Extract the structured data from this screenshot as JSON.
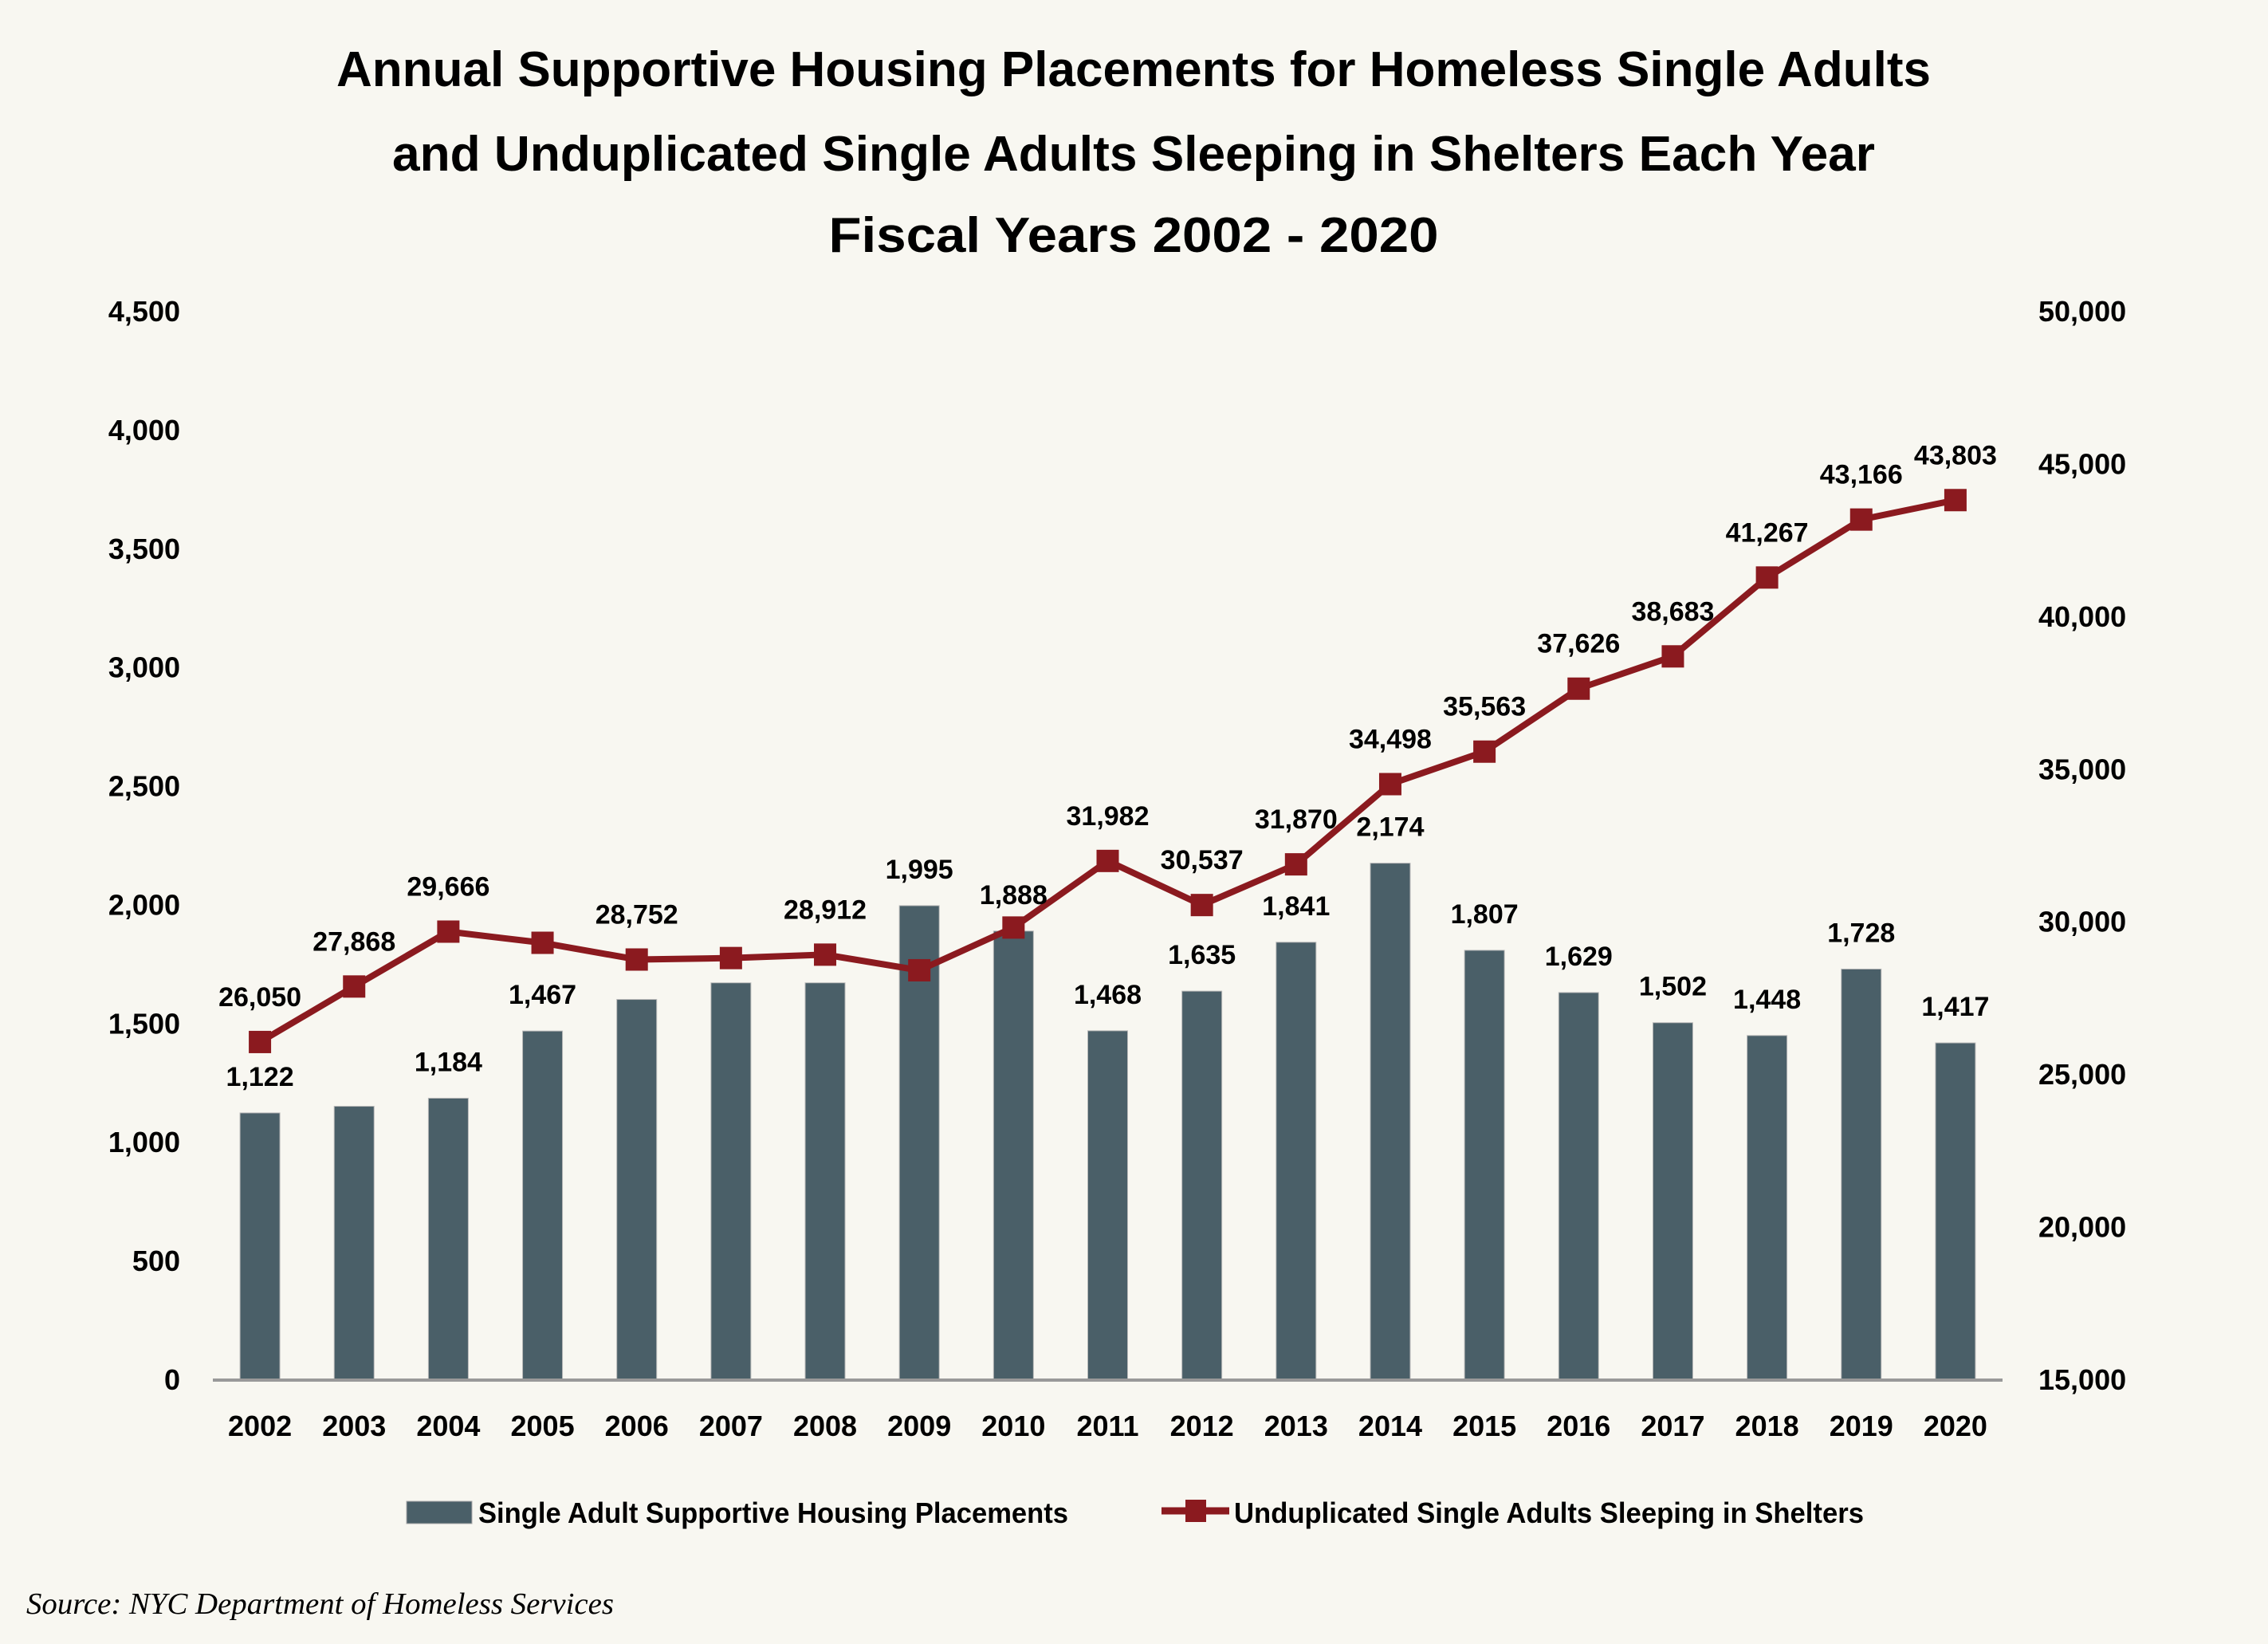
{
  "chart_data": {
    "type": "bar+line",
    "title": [
      "Annual Supportive Housing Placements for Homeless Single Adults",
      "and Unduplicated Single Adults Sleeping in Shelters Each Year",
      "Fiscal Years 2002 - 2020"
    ],
    "categories": [
      "2002",
      "2003",
      "2004",
      "2005",
      "2006",
      "2007",
      "2008",
      "2009",
      "2010",
      "2011",
      "2012",
      "2013",
      "2014",
      "2015",
      "2016",
      "2017",
      "2018",
      "2019",
      "2020"
    ],
    "y_left": {
      "ylim": [
        0,
        4500
      ],
      "ticks": [
        "0",
        "500",
        "1,000",
        "1,500",
        "2,000",
        "2,500",
        "3,000",
        "3,500",
        "4,000",
        "4,500"
      ],
      "tick_values": [
        0,
        500,
        1000,
        1500,
        2000,
        2500,
        3000,
        3500,
        4000,
        4500
      ]
    },
    "y_right": {
      "ylim": [
        15000,
        50000
      ],
      "ticks": [
        "15,000",
        "20,000",
        "25,000",
        "30,000",
        "35,000",
        "40,000",
        "45,000",
        "50,000"
      ],
      "tick_values": [
        15000,
        20000,
        25000,
        30000,
        35000,
        40000,
        45000,
        50000
      ]
    },
    "series": [
      {
        "name": "Single Adult Supportive Housing Placements",
        "type": "bar",
        "axis": "left",
        "color": "#4A5F68",
        "values": [
          1122,
          1150,
          1184,
          1467,
          1600,
          1670,
          1670,
          1995,
          1888,
          1468,
          1635,
          1841,
          2174,
          1807,
          1629,
          1502,
          1448,
          1728,
          1417
        ],
        "labels": [
          "1,122",
          null,
          "1,184",
          "1,467",
          null,
          null,
          null,
          "1,995",
          "1,888",
          "1,468",
          "1,635",
          "1,841",
          "2,174",
          "1,807",
          "1,629",
          "1,502",
          "1,448",
          "1,728",
          "1,417"
        ]
      },
      {
        "name": "Unduplicated Single Adults Sleeping in Shelters",
        "type": "line",
        "axis": "right",
        "color": "#8B1A1F",
        "marker": "square",
        "values": [
          26050,
          27868,
          29666,
          29300,
          28752,
          28800,
          28912,
          28400,
          29800,
          31982,
          30537,
          31870,
          34498,
          35563,
          37626,
          38683,
          41267,
          43166,
          43803
        ],
        "labels": [
          "26,050",
          "27,868",
          "29,666",
          null,
          "28,752",
          null,
          "28,912",
          null,
          null,
          "31,982",
          "30,537",
          "31,870",
          "34,498",
          "35,563",
          "37,626",
          "38,683",
          "41,267",
          "43,166",
          "43,803"
        ]
      }
    ],
    "legend": [
      "Single Adult Supportive Housing Placements",
      "Unduplicated Single Adults Sleeping in Shelters"
    ],
    "legend_position": "bottom",
    "grid": false,
    "source": "Source: NYC Department of Homeless Services"
  }
}
